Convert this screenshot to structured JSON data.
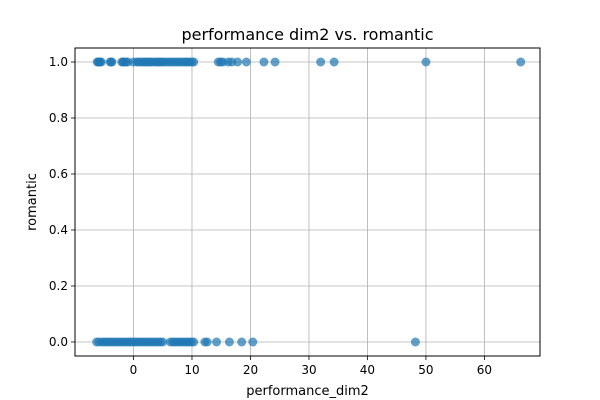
{
  "chart_data": {
    "type": "scatter",
    "title": "performance dim2 vs. romantic",
    "xlabel": "performance_dim2",
    "ylabel": "romantic",
    "xlim": [
      -10,
      69.5
    ],
    "ylim": [
      -0.05,
      1.05
    ],
    "xticks": [
      0,
      10,
      20,
      30,
      40,
      50,
      60
    ],
    "yticks": [
      0.0,
      0.2,
      0.4,
      0.6,
      0.8,
      1.0
    ],
    "xtick_labels": [
      "0",
      "10",
      "20",
      "30",
      "40",
      "50",
      "60"
    ],
    "ytick_labels": [
      "0.0",
      "0.2",
      "0.4",
      "0.6",
      "0.8",
      "1.0"
    ],
    "grid": true,
    "colors": {
      "marker": "#1f77b4",
      "grid": "#b0b0b0",
      "axis": "#000000"
    },
    "series": [
      {
        "x": [
          -6.2,
          -6.0,
          -5.9,
          -5.7,
          -5.5,
          -4.0,
          -3.8,
          -3.7,
          -2.0,
          -1.8,
          -1.6,
          -1.3,
          -1.0,
          0.0,
          0.6,
          0.9,
          1.3,
          1.7,
          2.0,
          2.3,
          2.6,
          3.0,
          3.2,
          3.7,
          4.0,
          4.3,
          4.6,
          5.0,
          5.3,
          5.8,
          6.2,
          6.6,
          7.0,
          7.4,
          7.8,
          8.2,
          8.6,
          9.0,
          9.2,
          9.6,
          10.0,
          10.3,
          14.5,
          14.9,
          15.3,
          16.2,
          16.8,
          17.8,
          19.3,
          22.3,
          24.2,
          32.0,
          34.3,
          50.0,
          66.2
        ],
        "y": [
          1,
          1,
          1,
          1,
          1,
          1,
          1,
          1,
          1,
          1,
          1,
          1,
          1,
          1,
          1,
          1,
          1,
          1,
          1,
          1,
          1,
          1,
          1,
          1,
          1,
          1,
          1,
          1,
          1,
          1,
          1,
          1,
          1,
          1,
          1,
          1,
          1,
          1,
          1,
          1,
          1,
          1,
          1,
          1,
          1,
          1,
          1,
          1,
          1,
          1,
          1,
          1,
          1,
          1,
          1
        ]
      },
      {
        "x": [
          -6.3,
          -5.9,
          -5.4,
          -5.0,
          -4.6,
          -4.2,
          -3.8,
          -3.4,
          -3.0,
          -2.6,
          -2.2,
          -1.8,
          -1.4,
          -1.0,
          -0.6,
          -0.2,
          0.2,
          0.6,
          1.0,
          1.4,
          1.8,
          2.2,
          2.6,
          3.0,
          3.4,
          3.8,
          4.2,
          4.6,
          5.0,
          6.3,
          6.7,
          7.1,
          7.5,
          7.9,
          8.3,
          8.7,
          9.1,
          9.5,
          9.9,
          10.3,
          12.2,
          12.6,
          14.2,
          16.4,
          18.5,
          20.4,
          48.2
        ],
        "y": [
          0,
          0,
          0,
          0,
          0,
          0,
          0,
          0,
          0,
          0,
          0,
          0,
          0,
          0,
          0,
          0,
          0,
          0,
          0,
          0,
          0,
          0,
          0,
          0,
          0,
          0,
          0,
          0,
          0,
          0,
          0,
          0,
          0,
          0,
          0,
          0,
          0,
          0,
          0,
          0,
          0,
          0,
          0,
          0,
          0,
          0,
          0
        ]
      }
    ]
  }
}
